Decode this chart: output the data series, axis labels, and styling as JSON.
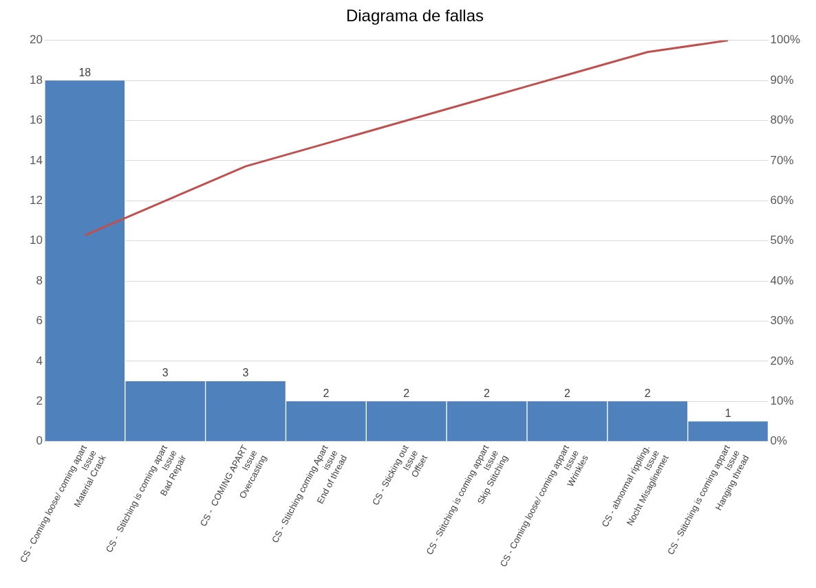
{
  "chart_data": {
    "type": "bar",
    "title": "Diagrama de fallas",
    "categories": [
      "CS - Coming loose/ coming apart\nIssue\nMaterial Crack",
      "CS -  Stitching is coming apart\nIssue\nBad Repair",
      "CS -  COMING APART\nIssue\nOvercasting",
      "CS - Stitching coming Apart\nissue\nEnd of thread",
      "CS - Sticking out\nIssue\nOffset",
      "CS - Stitching is coming appart\nIssue\nSkip Stitching",
      "CS - Coming loose/ coming appart\nIssue\nWrinkles",
      "CS - abnormal rippling.\nIssue\nNocht Misaglinemet",
      "CS - Stitching is coming appart\nIssue\nHanging thread"
    ],
    "series": [
      {
        "color": "#4f81bd",
        "values": [
          18,
          3,
          3,
          2,
          2,
          2,
          2,
          2,
          1
        ],
        "value_labels": [
          "18",
          "3",
          "3",
          "2",
          "2",
          "2",
          "2",
          "2",
          "1"
        ]
      },
      {
        "type": "line",
        "axis": "y2",
        "color": "#c0504d",
        "values": [
          51.4,
          60,
          68.6,
          74.3,
          80,
          85.7,
          91.4,
          97.1,
          100
        ]
      }
    ],
    "ylim": [
      0,
      20
    ],
    "yticks": [
      0,
      2,
      4,
      6,
      8,
      10,
      12,
      14,
      16,
      18,
      20
    ],
    "y2lim": [
      0,
      100
    ],
    "y2ticks": [
      {
        "value": 0,
        "label": "0%"
      },
      {
        "value": 10,
        "label": "10%"
      },
      {
        "value": 20,
        "label": "20%"
      },
      {
        "value": 30,
        "label": "30%"
      },
      {
        "value": 40,
        "label": "40%"
      },
      {
        "value": 50,
        "label": "50%"
      },
      {
        "value": 60,
        "label": "60%"
      },
      {
        "value": 70,
        "label": "70%"
      },
      {
        "value": 80,
        "label": "80%"
      },
      {
        "value": 90,
        "label": "90%"
      },
      {
        "value": 100,
        "label": "100%"
      }
    ],
    "grid": "y",
    "legend": false,
    "marker": "none"
  }
}
